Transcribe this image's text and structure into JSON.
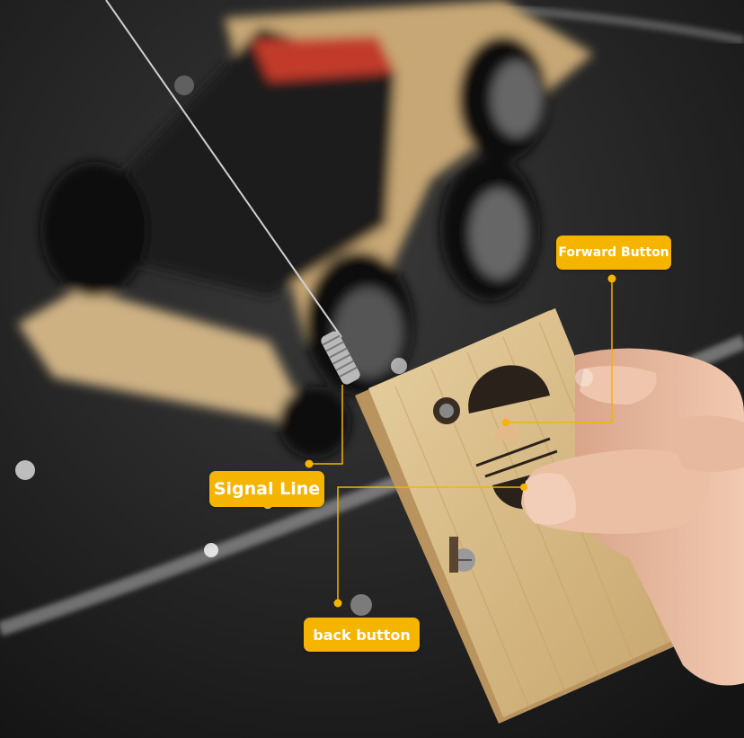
{
  "labels": {
    "forward": "Forward Button",
    "signal": "Signal Line",
    "back": "back button"
  },
  "colors": {
    "callout": "#f4b400",
    "callout_text": "#ffffff",
    "background": "#1c1c1c",
    "wood": "#d9bd8a"
  }
}
